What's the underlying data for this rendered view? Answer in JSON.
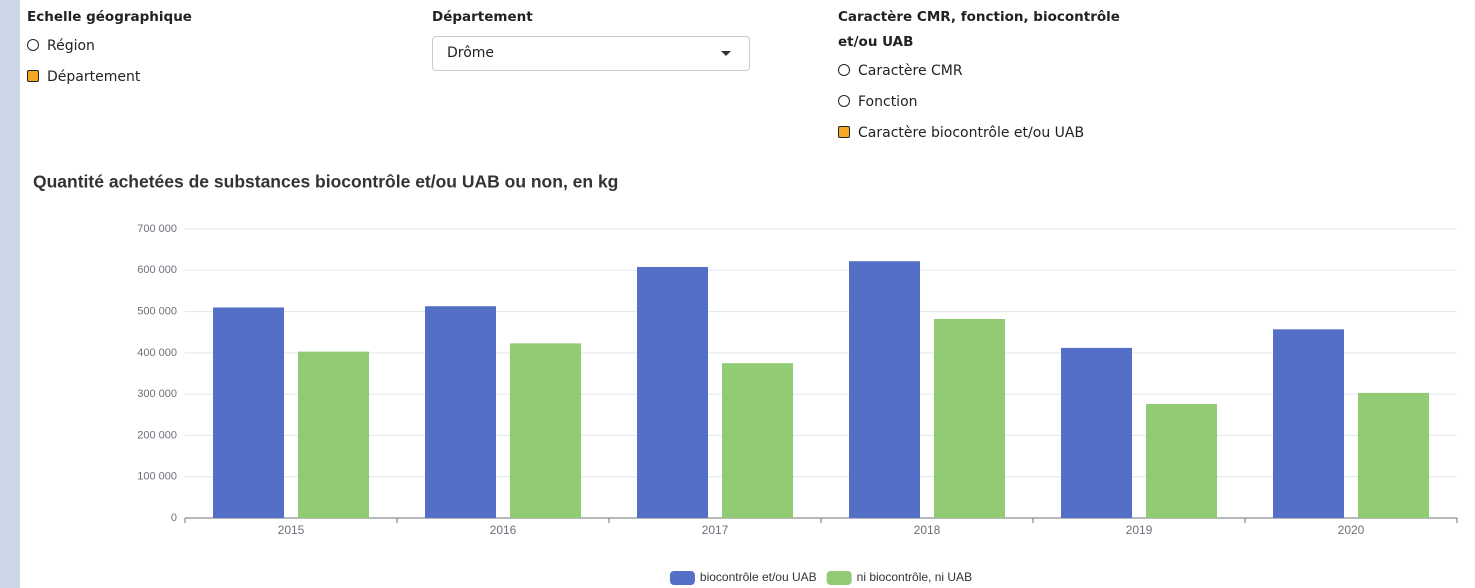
{
  "controls": [
    {
      "label": "Echelle géographique",
      "options": [
        "Région",
        "Département"
      ],
      "selected": 1
    },
    {
      "label": "Département",
      "value": "Drôme"
    },
    {
      "label": "Caractère CMR, fonction, biocontrôle et/ou UAB",
      "options": [
        "Caractère CMR",
        "Fonction",
        "Caractère biocontrôle et/ou UAB"
      ],
      "selected": 2
    }
  ],
  "chart_data": {
    "type": "bar",
    "title": "Quantité achetées de substances biocontrôle et/ou UAB ou non, en kg",
    "categories": [
      "2015",
      "2016",
      "2017",
      "2018",
      "2019",
      "2020"
    ],
    "series": [
      {
        "name": "biocontrôle et/ou UAB",
        "color": "#5470c6",
        "values": [
          510000,
          513000,
          608000,
          622000,
          412000,
          457000
        ]
      },
      {
        "name": "ni biocontrôle, ni UAB",
        "color": "#91cc75",
        "values": [
          403000,
          423000,
          375000,
          482000,
          276000,
          303000
        ]
      }
    ],
    "ylim": [
      0,
      700000
    ],
    "yticks": [
      0,
      {
        "value": 100000,
        "label": "100 000"
      },
      {
        "value": 200000,
        "label": "200 000"
      },
      {
        "value": 300000,
        "label": "300 000"
      },
      {
        "value": 400000,
        "label": "400 000"
      },
      {
        "value": 500000,
        "label": "500 000"
      },
      {
        "value": 600000,
        "label": "600 000"
      },
      {
        "value": 700000,
        "label": "700 000"
      }
    ],
    "grid": true,
    "legend": "bottom"
  }
}
